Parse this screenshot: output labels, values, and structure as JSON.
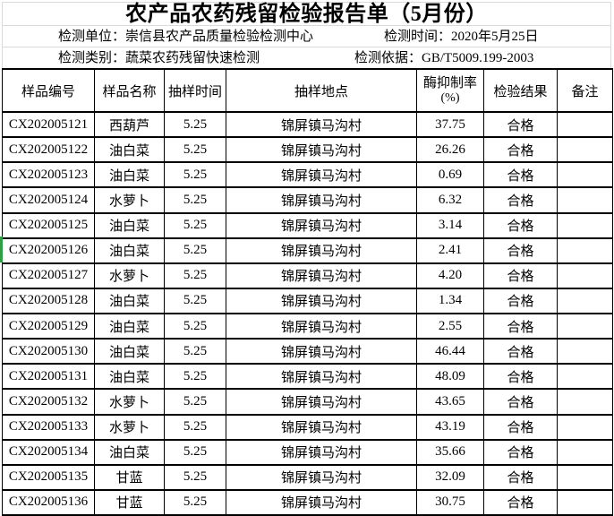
{
  "title": "农产品农药残留检验报告单（5月份）",
  "meta": {
    "unit_label": "检测单位：",
    "unit_value": "崇信县农产品质量检验检测中心",
    "time_label": "检测时间：",
    "time_value": "2020年5月25日",
    "category_label": "检测类别：",
    "category_value": "蔬菜农药残留快速检测",
    "basis_label": "检测依据：",
    "basis_value": "GB/T5009.199-2003"
  },
  "table": {
    "headers": {
      "id": "样品编号",
      "name": "样品名称",
      "time": "抽样时间",
      "place": "抽样地点",
      "rate_line1": "酶抑制率",
      "rate_line2": "(%)",
      "result": "检验结果",
      "remark": "备注"
    },
    "rows": [
      {
        "id": "CX202005121",
        "name": "西葫芦",
        "time": "5.25",
        "place": "锦屏镇马沟村",
        "rate": "37.75",
        "result": "合格",
        "remark": ""
      },
      {
        "id": "CX202005122",
        "name": "油白菜",
        "time": "5.25",
        "place": "锦屏镇马沟村",
        "rate": "26.26",
        "result": "合格",
        "remark": ""
      },
      {
        "id": "CX202005123",
        "name": "油白菜",
        "time": "5.25",
        "place": "锦屏镇马沟村",
        "rate": "0.69",
        "result": "合格",
        "remark": ""
      },
      {
        "id": "CX202005124",
        "name": "水萝卜",
        "time": "5.25",
        "place": "锦屏镇马沟村",
        "rate": "6.32",
        "result": "合格",
        "remark": ""
      },
      {
        "id": "CX202005125",
        "name": "油白菜",
        "time": "5.25",
        "place": "锦屏镇马沟村",
        "rate": "3.14",
        "result": "合格",
        "remark": ""
      },
      {
        "id": "CX202005126",
        "name": "油白菜",
        "time": "5.25",
        "place": "锦屏镇马沟村",
        "rate": "2.41",
        "result": "合格",
        "remark": ""
      },
      {
        "id": "CX202005127",
        "name": "水萝卜",
        "time": "5.25",
        "place": "锦屏镇马沟村",
        "rate": "4.20",
        "result": "合格",
        "remark": ""
      },
      {
        "id": "CX202005128",
        "name": "油白菜",
        "time": "5.25",
        "place": "锦屏镇马沟村",
        "rate": "1.34",
        "result": "合格",
        "remark": ""
      },
      {
        "id": "CX202005129",
        "name": "油白菜",
        "time": "5.25",
        "place": "锦屏镇马沟村",
        "rate": "2.55",
        "result": "合格",
        "remark": ""
      },
      {
        "id": "CX202005130",
        "name": "油白菜",
        "time": "5.25",
        "place": "锦屏镇马沟村",
        "rate": "46.44",
        "result": "合格",
        "remark": ""
      },
      {
        "id": "CX202005131",
        "name": "油白菜",
        "time": "5.25",
        "place": "锦屏镇马沟村",
        "rate": "48.09",
        "result": "合格",
        "remark": ""
      },
      {
        "id": "CX202005132",
        "name": "水萝卜",
        "time": "5.25",
        "place": "锦屏镇马沟村",
        "rate": "43.65",
        "result": "合格",
        "remark": ""
      },
      {
        "id": "CX202005133",
        "name": "水萝卜",
        "time": "5.25",
        "place": "锦屏镇马沟村",
        "rate": "43.19",
        "result": "合格",
        "remark": ""
      },
      {
        "id": "CX202005134",
        "name": "油白菜",
        "time": "5.25",
        "place": "锦屏镇马沟村",
        "rate": "35.66",
        "result": "合格",
        "remark": ""
      },
      {
        "id": "CX202005135",
        "name": "甘蓝",
        "time": "5.25",
        "place": "锦屏镇马沟村",
        "rate": "32.09",
        "result": "合格",
        "remark": ""
      },
      {
        "id": "CX202005136",
        "name": "甘蓝",
        "time": "5.25",
        "place": "锦屏镇马沟村",
        "rate": "30.75",
        "result": "合格",
        "remark": ""
      }
    ]
  },
  "colors": {
    "selection_green": "#2f9e44",
    "table_border": "#000000",
    "gridline_gray": "#d9d9d9"
  }
}
